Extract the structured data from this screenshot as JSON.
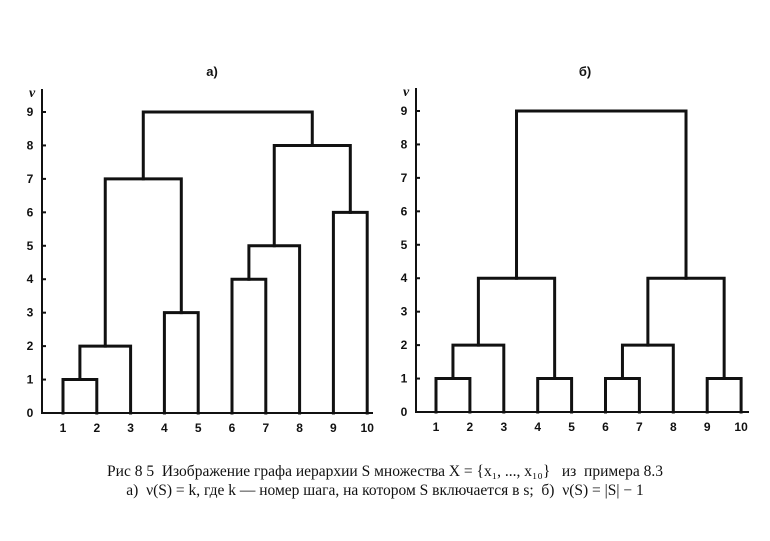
{
  "chart_data": [
    {
      "type": "dendrogram",
      "title": "а)",
      "ylabel": "ν",
      "ylim": [
        0,
        9
      ],
      "yticks": [
        "0",
        "1",
        "2",
        "3",
        "4",
        "5",
        "6",
        "7",
        "8",
        "9"
      ],
      "leaves": [
        "1",
        "2",
        "3",
        "4",
        "5",
        "6",
        "7",
        "8",
        "9",
        "10"
      ],
      "merges": [
        [
          "1",
          "2",
          1
        ],
        [
          "m0",
          "3",
          2
        ],
        [
          "4",
          "5",
          3
        ],
        [
          "6",
          "7",
          4
        ],
        [
          "m3",
          "8",
          5
        ],
        [
          "9",
          "10",
          6
        ],
        [
          "m1",
          "m2",
          7
        ],
        [
          "m4",
          "m5",
          8
        ],
        [
          "m6",
          "m7",
          9
        ]
      ]
    },
    {
      "type": "dendrogram",
      "title": "б)",
      "ylabel": "ν",
      "ylim": [
        0,
        9
      ],
      "yticks": [
        "0",
        "1",
        "2",
        "3",
        "4",
        "5",
        "6",
        "7",
        "8",
        "9"
      ],
      "leaves": [
        "1",
        "2",
        "3",
        "4",
        "5",
        "6",
        "7",
        "8",
        "9",
        "10"
      ],
      "merges": [
        [
          "1",
          "2",
          1
        ],
        [
          "m0",
          "3",
          2
        ],
        [
          "4",
          "5",
          1
        ],
        [
          "m1",
          "m2",
          4
        ],
        [
          "6",
          "7",
          1
        ],
        [
          "m4",
          "8",
          2
        ],
        [
          "9",
          "10",
          1
        ],
        [
          "m5",
          "m6",
          4
        ],
        [
          "m3",
          "m7",
          9
        ]
      ]
    }
  ],
  "caption": {
    "line1": "Рис 8 5  Изображение графа иерархии S множества X = {x₁, ..., x₁₀}   из  примера 8.3",
    "line2": "а)  ν(S) = k, где k — номер шага, на котором S включается в s;  б)  ν(S) = |S| − 1"
  }
}
